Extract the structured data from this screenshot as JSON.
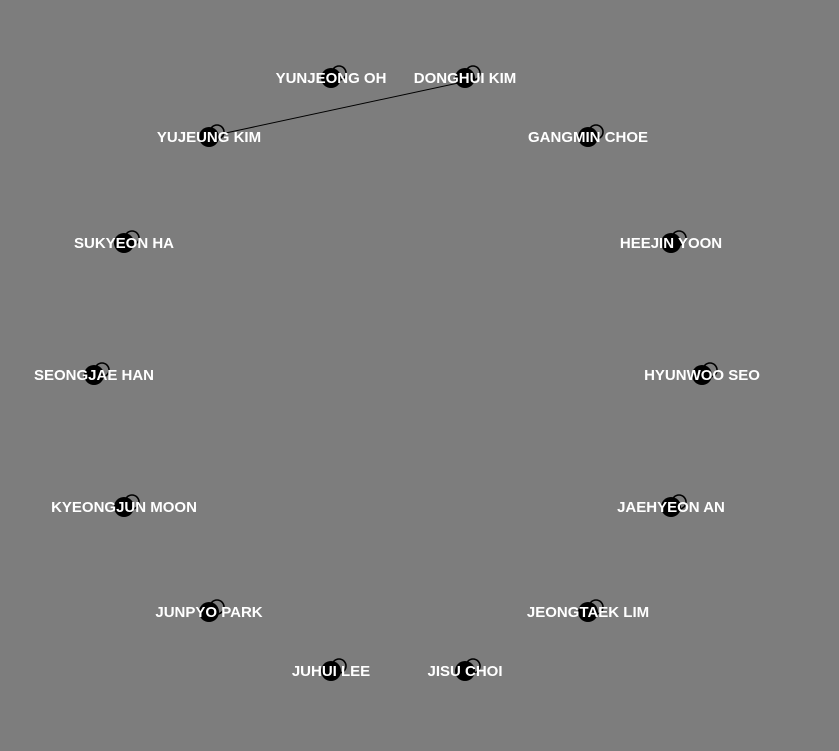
{
  "colors": {
    "background": "#7d7d7d",
    "node": "#000000",
    "edge": "#000000",
    "label": "#ffffff"
  },
  "nodes": [
    {
      "id": "n1",
      "label": "YUNJEONG OH"
    },
    {
      "id": "n2",
      "label": "DONGHUI KIM"
    },
    {
      "id": "n3",
      "label": "YUJEUNG KIM"
    },
    {
      "id": "n4",
      "label": "GANGMIN CHOE"
    },
    {
      "id": "n5",
      "label": "SUKYEON HA"
    },
    {
      "id": "n6",
      "label": "HEEJIN YOON"
    },
    {
      "id": "n7",
      "label": "SEONGJAE HAN"
    },
    {
      "id": "n8",
      "label": "HYUNWOO SEO"
    },
    {
      "id": "n9",
      "label": "KYEONGJUN MOON"
    },
    {
      "id": "n10",
      "label": "JAEHYEON AN"
    },
    {
      "id": "n11",
      "label": "JUNPYO PARK"
    },
    {
      "id": "n12",
      "label": "JEONGTAEK LIM"
    },
    {
      "id": "n13",
      "label": "JUHUI LEE"
    },
    {
      "id": "n14",
      "label": "JISU CHOI"
    }
  ],
  "edges": [
    {
      "source": "n2",
      "target": "n3"
    }
  ]
}
